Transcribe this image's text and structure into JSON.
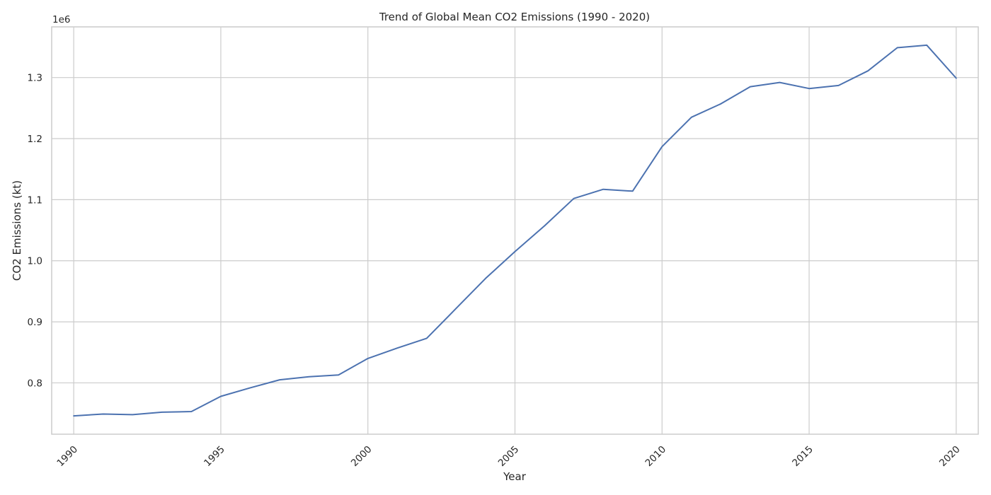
{
  "colors": {
    "series": "#4c72b0",
    "grid": "#cccccc"
  },
  "chart_data": {
    "type": "line",
    "title": "Trend of Global Mean CO2 Emissions (1990 - 2020)",
    "xlabel": "Year",
    "ylabel": "CO2 Emissions (kt)",
    "y_offset_label": "1e6",
    "y_scale": 1000000,
    "xlim": [
      1989.25,
      2020.75
    ],
    "ylim": [
      716000,
      1383000
    ],
    "xticks": [
      1990,
      1995,
      2000,
      2005,
      2010,
      2015,
      2020
    ],
    "yticks": [
      0.8,
      0.9,
      1.0,
      1.1,
      1.2,
      1.3
    ],
    "grid": true,
    "series": [
      {
        "x": [
          1990,
          1991,
          1992,
          1993,
          1994,
          1995,
          1996,
          1997,
          1998,
          1999,
          2000,
          2001,
          2002,
          2003,
          2004,
          2005,
          2006,
          2007,
          2008,
          2009,
          2010,
          2011,
          2012,
          2013,
          2014,
          2015,
          2016,
          2017,
          2018,
          2019,
          2020
        ],
        "values": [
          746000,
          749000,
          748000,
          752000,
          753000,
          778000,
          792000,
          805000,
          810000,
          813000,
          840000,
          857000,
          873000,
          922000,
          971000,
          1015000,
          1057000,
          1102000,
          1117000,
          1114000,
          1187000,
          1235000,
          1257000,
          1285000,
          1292000,
          1282000,
          1287000,
          1311000,
          1349000,
          1353000,
          1299000
        ]
      }
    ]
  }
}
